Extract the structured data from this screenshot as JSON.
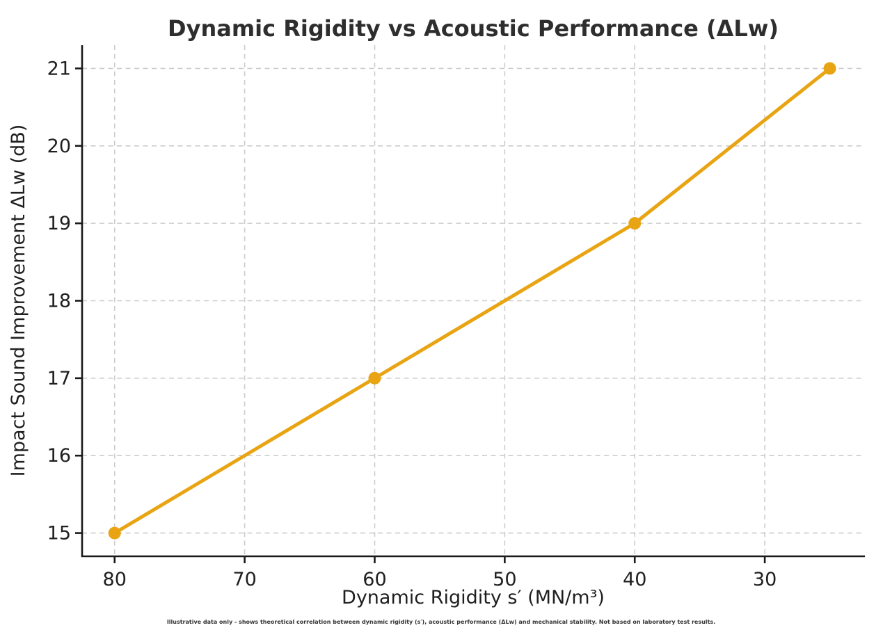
{
  "figure": {
    "title": "Dynamic Rigidity vs Acoustic Performance (ΔLw)",
    "footnote": "Illustrative data only - shows theoretical correlation between dynamic rigidity (s′), acoustic performance (ΔLw) and mechanical stability. Not based on laboratory test results."
  },
  "chart_data": {
    "type": "line",
    "title": "Dynamic Rigidity vs Acoustic Performance (ΔLw)",
    "xlabel": "Dynamic Rigidity s′ (MN/m³)",
    "ylabel": "Impact Sound Improvement ΔLw (dB)",
    "x": [
      80,
      60,
      40,
      25
    ],
    "y": [
      15,
      17,
      19,
      21
    ],
    "series": [
      {
        "name": "Impact Sound Improvement",
        "x": [
          80,
          60,
          40,
          25
        ],
        "values": [
          15,
          17,
          19,
          21
        ]
      }
    ],
    "x_ticks": [
      80,
      70,
      60,
      50,
      40,
      30
    ],
    "y_ticks": [
      15,
      16,
      17,
      18,
      19,
      20,
      21
    ],
    "xlim": [
      82.5,
      22.3
    ],
    "ylim": [
      14.7,
      21.3
    ],
    "x_axis_reversed": true,
    "grid": {
      "visible": true,
      "style": "dashed",
      "color": "#cccccc"
    },
    "legend_position": "none",
    "line": {
      "color": "#E8A412",
      "width": 5,
      "marker": "circle",
      "marker_radius": 9
    }
  },
  "colors": {
    "background": "#ffffff",
    "accent": "#E8A412",
    "grid": "#cccccc",
    "spine": "#1a1a1a",
    "text": "#2e2e2e"
  }
}
